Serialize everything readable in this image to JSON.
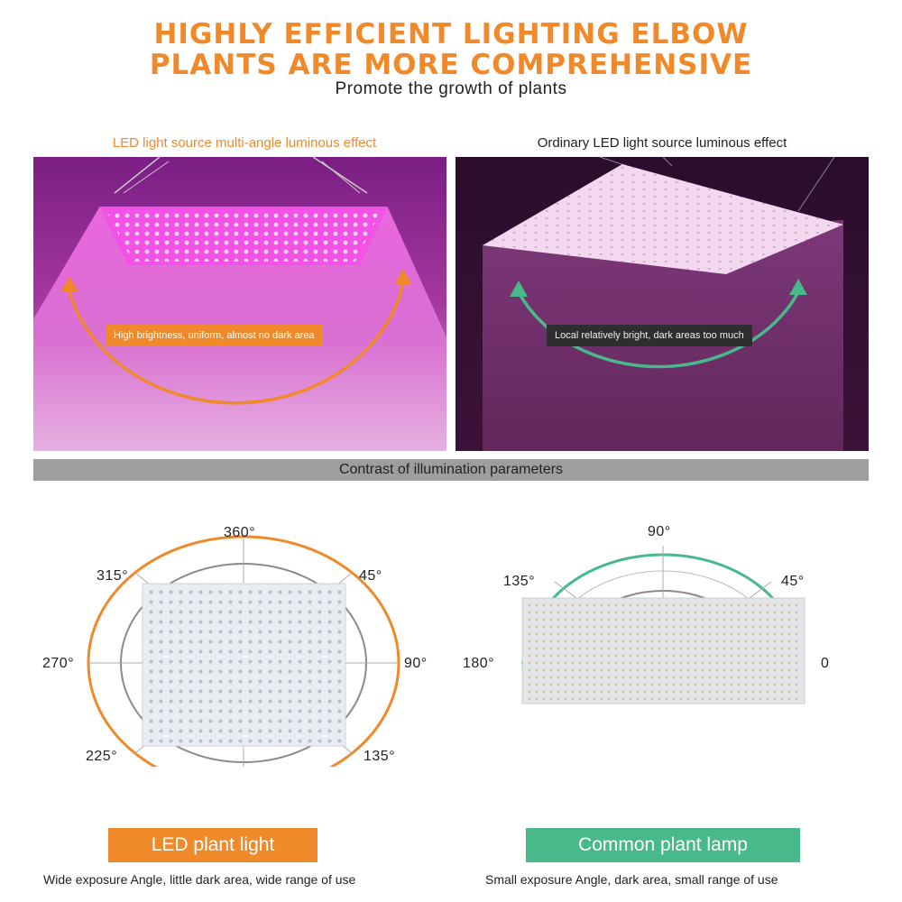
{
  "header": {
    "title_line1": "HIGHLY EFFICIENT LIGHTING ELBOW",
    "title_line2": "PLANTS ARE MORE COMPREHENSIVE",
    "subtitle": "Promote the growth of plants"
  },
  "left_panel": {
    "caption": "LED light source multi-angle luminous effect",
    "callout": "High brightness, uniform, almost no dark area"
  },
  "right_panel": {
    "caption": "Ordinary LED light source luminous effect",
    "callout": "Local relatively bright, dark areas too much"
  },
  "contrast_bar": {
    "label": "Contrast of illumination parameters"
  },
  "left_diagram": {
    "angles": {
      "a360": "360°",
      "a315": "315°",
      "a45": "45°",
      "a270": "270°",
      "a90": "90°",
      "a225": "225°",
      "a135": "135°"
    },
    "label": "LED plant light",
    "description": "Wide exposure Angle, little dark area, wide range of use"
  },
  "right_diagram": {
    "angles": {
      "a90": "90°",
      "a135": "135°",
      "a45": "45°",
      "a180": "180°",
      "a0": "0"
    },
    "label": "Common plant lamp",
    "description": "Small exposure Angle, dark area, small range of use"
  },
  "colors": {
    "orange": "#f0892a",
    "green": "#48b98a",
    "grey_bar": "#9e9e9e"
  }
}
